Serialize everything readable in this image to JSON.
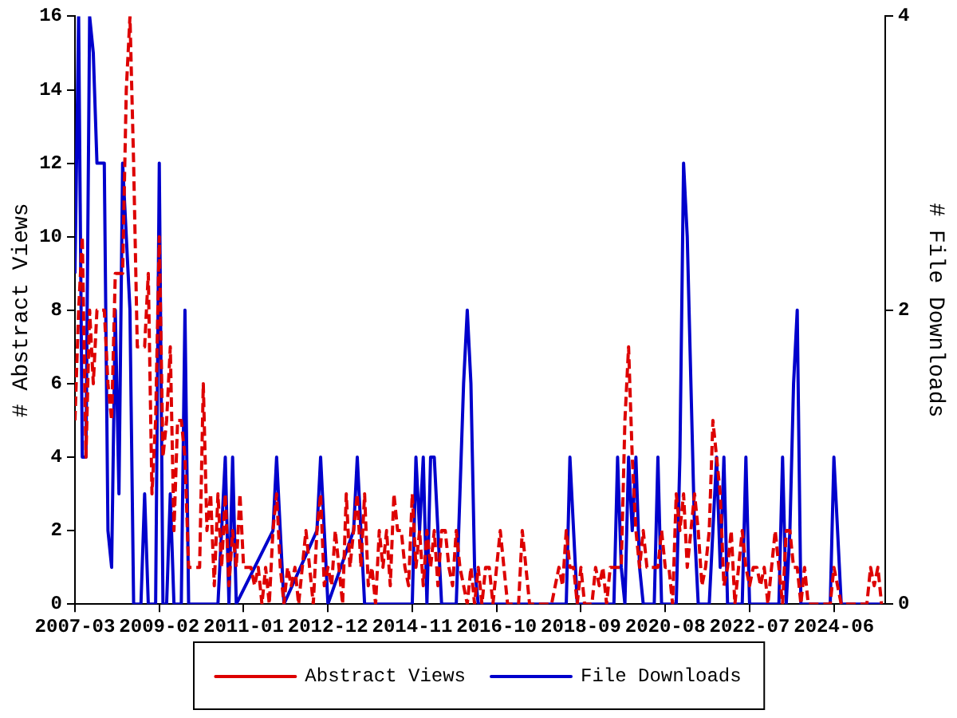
{
  "chart_data": {
    "type": "line",
    "ylabel": "# Abstract Views",
    "y2label": "# File Downloads",
    "legend": "bottom",
    "xlim": [
      "2007-03",
      "2025-08"
    ],
    "xticks": [
      "2007-03",
      "2009-02",
      "2011-01",
      "2012-12",
      "2014-11",
      "2016-10",
      "2018-09",
      "2020-08",
      "2022-07",
      "2024-06"
    ],
    "ylim": [
      0,
      16
    ],
    "yticks": [
      0,
      2,
      4,
      6,
      8,
      10,
      12,
      14,
      16
    ],
    "y2lim": [
      0,
      4
    ],
    "y2ticks": [
      0,
      2,
      4
    ],
    "series": [
      {
        "name": "Abstract Views",
        "color": "#dd0000",
        "line_style": "dashed",
        "x": [
          "2007-03",
          "2007-04",
          "2007-05",
          "2007-06",
          "2007-07",
          "2007-08",
          "2007-09",
          "2007-10",
          "2007-11",
          "2007-12",
          "2008-01",
          "2008-02",
          "2008-03",
          "2008-04",
          "2008-05",
          "2008-06",
          "2008-07",
          "2008-08",
          "2008-09",
          "2008-10",
          "2008-11",
          "2008-12",
          "2009-01",
          "2009-02",
          "2009-03",
          "2009-04",
          "2009-05",
          "2009-06",
          "2009-07",
          "2009-08",
          "2009-09",
          "2009-10",
          "2009-11",
          "2009-12",
          "2010-01",
          "2010-02",
          "2010-03",
          "2010-04",
          "2010-05",
          "2010-06",
          "2010-07",
          "2010-08",
          "2010-09",
          "2010-10",
          "2010-11",
          "2010-12",
          "2011-01",
          "2011-02",
          "2011-03",
          "2011-04",
          "2011-05",
          "2011-06",
          "2011-07",
          "2011-08",
          "2011-09",
          "2011-10",
          "2011-11",
          "2011-12",
          "2012-01",
          "2012-02",
          "2012-03",
          "2012-04",
          "2012-05",
          "2012-06",
          "2012-07",
          "2012-08",
          "2012-09",
          "2012-10",
          "2012-11",
          "2012-12",
          "2013-01",
          "2013-02",
          "2013-03",
          "2013-04",
          "2013-05",
          "2013-06",
          "2013-07",
          "2013-08",
          "2013-09",
          "2013-10",
          "2013-11",
          "2013-12",
          "2014-01",
          "2014-02",
          "2014-03",
          "2014-04",
          "2014-05",
          "2014-06",
          "2014-07",
          "2014-08",
          "2014-09",
          "2014-10",
          "2014-11",
          "2014-12",
          "2015-01",
          "2015-02",
          "2015-03",
          "2015-04",
          "2015-05",
          "2015-06",
          "2015-07",
          "2015-08",
          "2015-09",
          "2015-10",
          "2015-11",
          "2015-12",
          "2016-01",
          "2016-02",
          "2016-03",
          "2016-04",
          "2016-05",
          "2016-06",
          "2016-07",
          "2016-08",
          "2016-09",
          "2016-10",
          "2016-11",
          "2016-12",
          "2017-01",
          "2017-04",
          "2017-05",
          "2017-06",
          "2017-07",
          "2017-12",
          "2018-01",
          "2018-03",
          "2018-04",
          "2018-05",
          "2018-06",
          "2018-07",
          "2018-08",
          "2018-09",
          "2018-10",
          "2018-12",
          "2019-01",
          "2019-02",
          "2019-03",
          "2019-04",
          "2019-05",
          "2019-06",
          "2019-07",
          "2019-08",
          "2019-09",
          "2019-10",
          "2019-11",
          "2019-12",
          "2020-01",
          "2020-02",
          "2020-03",
          "2020-04",
          "2020-05",
          "2020-06",
          "2020-07",
          "2020-08",
          "2020-09",
          "2020-10",
          "2020-11",
          "2020-12",
          "2021-01",
          "2021-02",
          "2021-03",
          "2021-04",
          "2021-05",
          "2021-06",
          "2021-07",
          "2021-08",
          "2021-09",
          "2021-10",
          "2021-11",
          "2021-12",
          "2022-01",
          "2022-02",
          "2022-03",
          "2022-04",
          "2022-05",
          "2022-06",
          "2022-07",
          "2022-08",
          "2022-09",
          "2022-10",
          "2022-11",
          "2022-12",
          "2023-01",
          "2023-02",
          "2023-03",
          "2023-04",
          "2023-05",
          "2023-06",
          "2023-07",
          "2023-08",
          "2023-09",
          "2023-10",
          "2023-11",
          "2023-12",
          "2024-01",
          "2024-05",
          "2024-06",
          "2024-07",
          "2024-08",
          "2024-12",
          "2025-03",
          "2025-04",
          "2025-05",
          "2025-06",
          "2025-07"
        ],
        "values": [
          5,
          8,
          10,
          4,
          8,
          6,
          8,
          8,
          8,
          6,
          5,
          9,
          9,
          9,
          14,
          16,
          12,
          7,
          7,
          7,
          9,
          3,
          5,
          10,
          4,
          5,
          7,
          2,
          5,
          5,
          4,
          1,
          1,
          1,
          1,
          6,
          2,
          3,
          0.5,
          3,
          1,
          3,
          0.5,
          2,
          1,
          3,
          1,
          1,
          1,
          0.5,
          1,
          0,
          1,
          0,
          2,
          3,
          1,
          0,
          1,
          0.5,
          1,
          0,
          1,
          2,
          1,
          0,
          2,
          3,
          0.5,
          1,
          0.5,
          2,
          1,
          0,
          3,
          1,
          2,
          3,
          1,
          3,
          0.5,
          1,
          0,
          2,
          1,
          2,
          0.5,
          3,
          2,
          2,
          1,
          0.5,
          3,
          1,
          2,
          0.5,
          2,
          1,
          2,
          0.5,
          2,
          2,
          1,
          0.5,
          2,
          1,
          0.5,
          0,
          1,
          0,
          1,
          0,
          1,
          1,
          0,
          1,
          2,
          1,
          0,
          0,
          2,
          1,
          0,
          0,
          0,
          1,
          0.5,
          2,
          1,
          1,
          0,
          1,
          0,
          0,
          1,
          0.5,
          1,
          0,
          1,
          1,
          1,
          1,
          5,
          7,
          4,
          2,
          1,
          2,
          1,
          1,
          1,
          1,
          2,
          1,
          1,
          0,
          3,
          2,
          3,
          1,
          2,
          3,
          2,
          0.5,
          1,
          2,
          5,
          4,
          3,
          0.5,
          1,
          2,
          0,
          1,
          2,
          1,
          0.5,
          1,
          1,
          0.5,
          1,
          0,
          1,
          2,
          1,
          0,
          2,
          2,
          1,
          1,
          0,
          1,
          0,
          0,
          0,
          0,
          1,
          0.5,
          0,
          0,
          0,
          1,
          0.5,
          1,
          0
        ]
      },
      {
        "name": "File Downloads",
        "color": "#0000cc",
        "line_style": "solid",
        "axis": "y2",
        "x": [
          "2007-03",
          "2007-04",
          "2007-05",
          "2007-06",
          "2007-07",
          "2007-08",
          "2007-09",
          "2007-10",
          "2007-11",
          "2007-12",
          "2008-01",
          "2008-02",
          "2008-03",
          "2008-04",
          "2008-05",
          "2008-06",
          "2008-07",
          "2008-08",
          "2008-09",
          "2008-10",
          "2008-11",
          "2008-12",
          "2009-01",
          "2009-02",
          "2009-03",
          "2009-04",
          "2009-05",
          "2009-06",
          "2009-08",
          "2009-09",
          "2009-10",
          "2010-06",
          "2010-07",
          "2010-08",
          "2010-09",
          "2010-10",
          "2010-11",
          "2011-09",
          "2011-10",
          "2011-11",
          "2011-12",
          "2012-09",
          "2012-10",
          "2012-11",
          "2012-12",
          "2013-07",
          "2013-08",
          "2013-09",
          "2013-10",
          "2014-11",
          "2014-12",
          "2015-01",
          "2015-02",
          "2015-03",
          "2015-04",
          "2015-05",
          "2015-06",
          "2015-07",
          "2015-11",
          "2015-12",
          "2016-01",
          "2016-02",
          "2016-03",
          "2016-04",
          "2016-05",
          "2018-05",
          "2018-06",
          "2018-07",
          "2018-08",
          "2019-06",
          "2019-07",
          "2019-08",
          "2019-09",
          "2019-10",
          "2019-11",
          "2019-12",
          "2020-01",
          "2020-02",
          "2020-05",
          "2020-06",
          "2020-07",
          "2020-11",
          "2020-12",
          "2021-01",
          "2021-02",
          "2021-03",
          "2021-04",
          "2021-05",
          "2021-08",
          "2021-09",
          "2021-10",
          "2021-11",
          "2021-12",
          "2022-01",
          "2022-05",
          "2022-06",
          "2022-07",
          "2023-03",
          "2023-04",
          "2023-05",
          "2023-06",
          "2023-07",
          "2023-08",
          "2023-09",
          "2024-05",
          "2024-06",
          "2024-07",
          "2024-08",
          "2025-07"
        ],
        "values": [
          2.25,
          4,
          1,
          1,
          4,
          3.75,
          3,
          3,
          3,
          0.5,
          0.25,
          2,
          0.75,
          3,
          2.5,
          2,
          0,
          0,
          0,
          0.75,
          0,
          0,
          0,
          3,
          0,
          0,
          0.75,
          0,
          0,
          2,
          0,
          0,
          0.5,
          1,
          0,
          1,
          0,
          0.5,
          1,
          0.5,
          0,
          0.5,
          1,
          0.5,
          0,
          0.5,
          1,
          0.5,
          0,
          0,
          1,
          0.5,
          1,
          0,
          1,
          1,
          0.5,
          0,
          0,
          0.75,
          1.5,
          2,
          1.5,
          0.25,
          0,
          0,
          1,
          0.5,
          0,
          0,
          1,
          0.25,
          0,
          1,
          0.5,
          1,
          0.25,
          0,
          0,
          1,
          0,
          0,
          1,
          3,
          2.5,
          1.5,
          0.5,
          0,
          0,
          0.5,
          1,
          0.25,
          1,
          0,
          0,
          1,
          0,
          0,
          1,
          0,
          0.5,
          1.5,
          2,
          0,
          0,
          1,
          0.5,
          0,
          0
        ]
      }
    ]
  }
}
